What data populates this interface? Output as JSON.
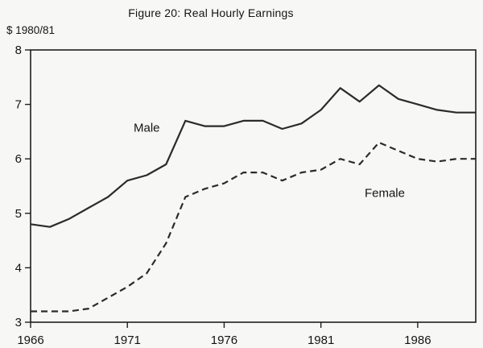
{
  "title": "Figure 20: Real Hourly Earnings",
  "unit_label": "$ 1980/81",
  "chart_data": {
    "type": "line",
    "x": [
      1966,
      1967,
      1968,
      1969,
      1970,
      1971,
      1972,
      1973,
      1974,
      1975,
      1976,
      1977,
      1978,
      1979,
      1980,
      1981,
      1982,
      1983,
      1984,
      1985,
      1986,
      1987,
      1988,
      1989
    ],
    "series": [
      {
        "name": "Male",
        "style": "solid",
        "values": [
          4.8,
          4.75,
          4.9,
          5.1,
          5.3,
          5.6,
          5.7,
          5.9,
          6.7,
          6.6,
          6.6,
          6.7,
          6.7,
          6.55,
          6.65,
          6.9,
          7.3,
          7.05,
          7.35,
          7.1,
          7.0,
          6.9,
          6.85,
          6.85
        ],
        "label": {
          "x": 1972.0,
          "y": 6.5
        }
      },
      {
        "name": "Female",
        "style": "dashed",
        "values": [
          3.2,
          3.2,
          3.2,
          3.25,
          3.45,
          3.65,
          3.9,
          4.45,
          5.3,
          5.45,
          5.55,
          5.75,
          5.75,
          5.6,
          5.75,
          5.8,
          6.0,
          5.9,
          6.3,
          6.15,
          6.0,
          5.95,
          6.0,
          6.0
        ],
        "label": {
          "x": 1984.3,
          "y": 5.3
        }
      }
    ],
    "xlabel": "",
    "ylabel": "$ 1980/81",
    "xlim": [
      1966,
      1989
    ],
    "ylim": [
      3,
      8
    ],
    "x_ticks": [
      1966,
      1971,
      1976,
      1981,
      1986
    ],
    "y_ticks": [
      3,
      4,
      5,
      6,
      7,
      8
    ],
    "grid": false,
    "legend_position": "inline-labels",
    "line_color": "#2b2b2b"
  }
}
